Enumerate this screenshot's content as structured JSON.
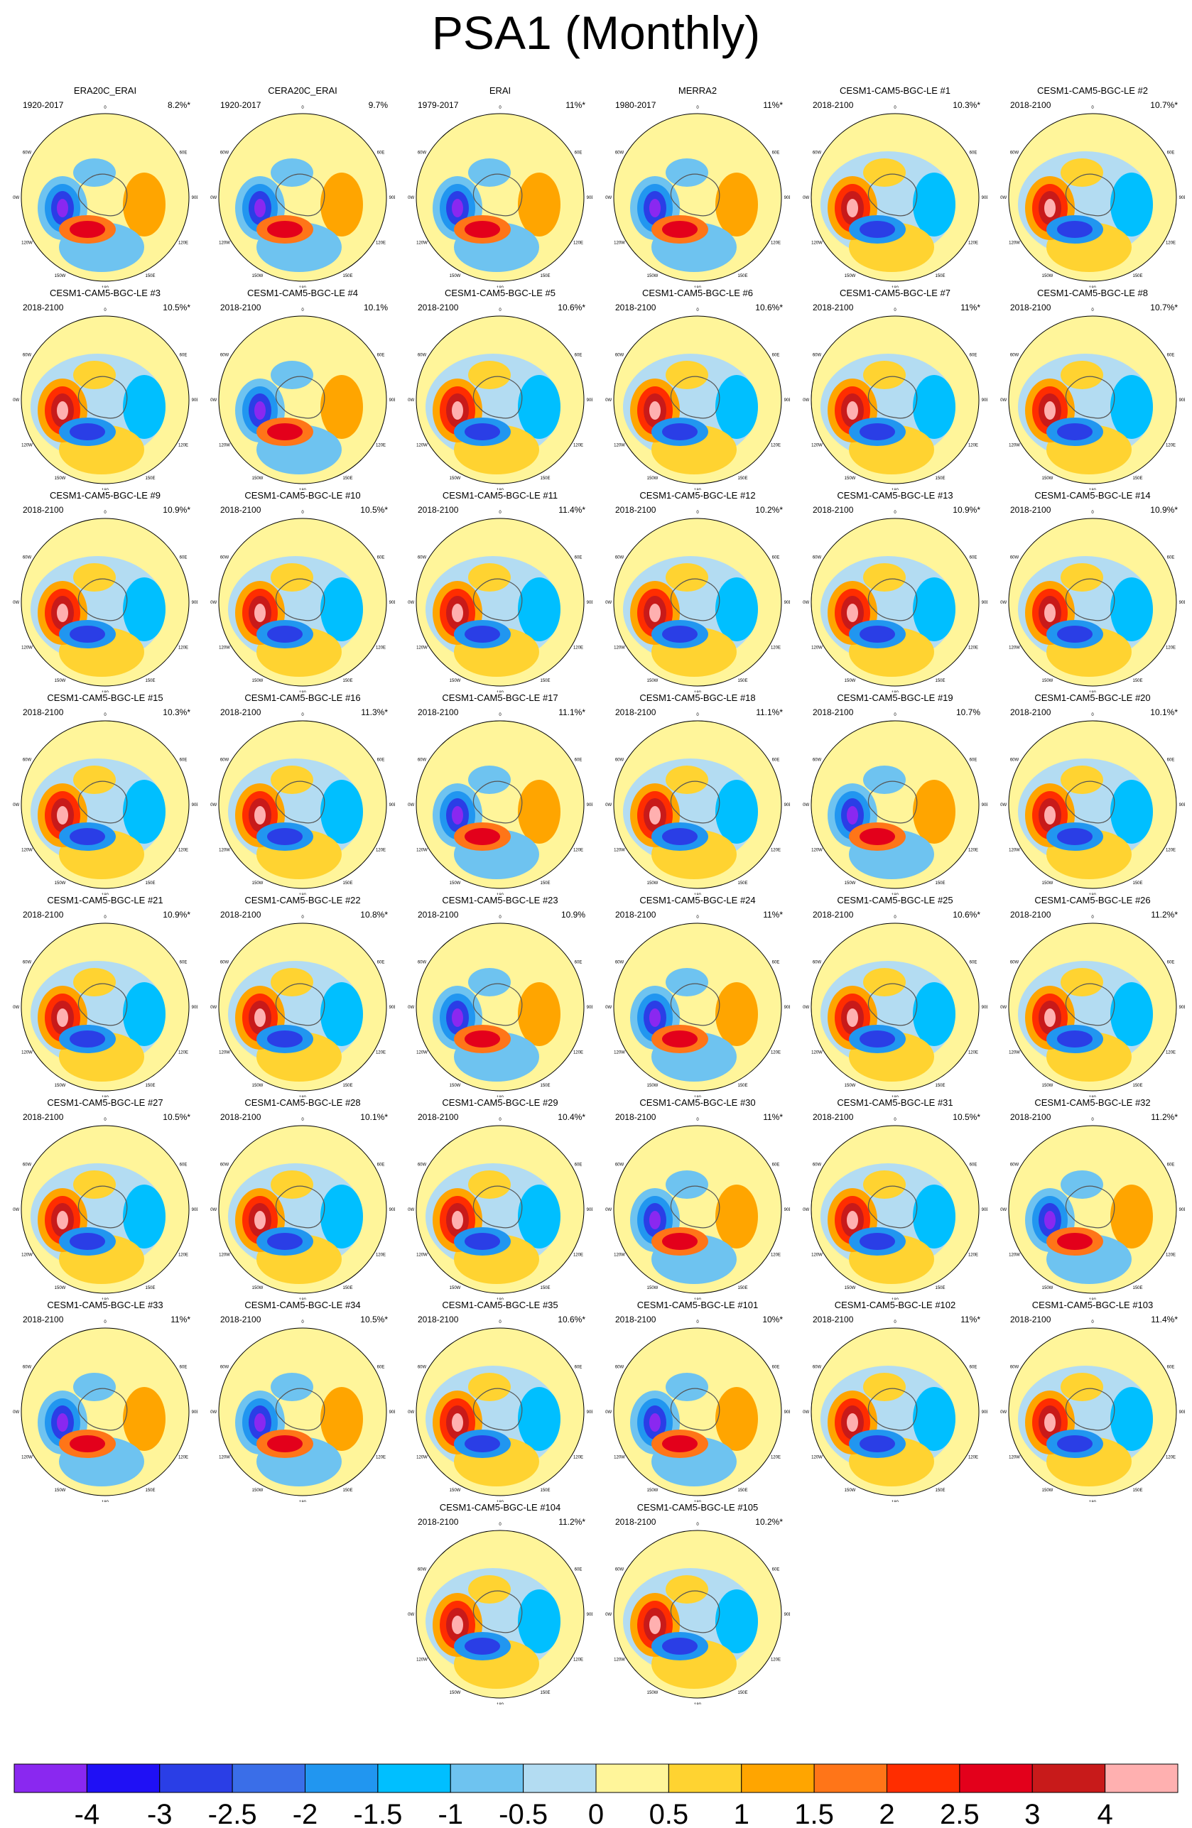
{
  "title": "PSA1 (Monthly)",
  "chart_data": {
    "type": "polar-contour-map-grid",
    "title": "PSA1 (Monthly)",
    "projection": "south-polar stereographic",
    "longitude_labels": [
      "0",
      "30E",
      "60E",
      "90E",
      "120E",
      "150E",
      "180",
      "150W",
      "120W",
      "90W",
      "60W",
      "30W"
    ],
    "panels": [
      {
        "name": "ERA20C_ERAI",
        "period": "1920-2017",
        "pct": "8.2%*"
      },
      {
        "name": "CERA20C_ERAI",
        "period": "1920-2017",
        "pct": "9.7%"
      },
      {
        "name": "ERAI",
        "period": "1979-2017",
        "pct": "11%*"
      },
      {
        "name": "MERRA2",
        "period": "1980-2017",
        "pct": "11%*"
      },
      {
        "name": "CESM1-CAM5-BGC-LE #1",
        "period": "2018-2100",
        "pct": "10.3%*"
      },
      {
        "name": "CESM1-CAM5-BGC-LE #2",
        "period": "2018-2100",
        "pct": "10.7%*"
      },
      {
        "name": "CESM1-CAM5-BGC-LE #3",
        "period": "2018-2100",
        "pct": "10.5%*"
      },
      {
        "name": "CESM1-CAM5-BGC-LE #4",
        "period": "2018-2100",
        "pct": "10.1%"
      },
      {
        "name": "CESM1-CAM5-BGC-LE #5",
        "period": "2018-2100",
        "pct": "10.6%*"
      },
      {
        "name": "CESM1-CAM5-BGC-LE #6",
        "period": "2018-2100",
        "pct": "10.6%*"
      },
      {
        "name": "CESM1-CAM5-BGC-LE #7",
        "period": "2018-2100",
        "pct": "11%*"
      },
      {
        "name": "CESM1-CAM5-BGC-LE #8",
        "period": "2018-2100",
        "pct": "10.7%*"
      },
      {
        "name": "CESM1-CAM5-BGC-LE #9",
        "period": "2018-2100",
        "pct": "10.9%*"
      },
      {
        "name": "CESM1-CAM5-BGC-LE #10",
        "period": "2018-2100",
        "pct": "10.5%*"
      },
      {
        "name": "CESM1-CAM5-BGC-LE #11",
        "period": "2018-2100",
        "pct": "11.4%*"
      },
      {
        "name": "CESM1-CAM5-BGC-LE #12",
        "period": "2018-2100",
        "pct": "10.2%*"
      },
      {
        "name": "CESM1-CAM5-BGC-LE #13",
        "period": "2018-2100",
        "pct": "10.9%*"
      },
      {
        "name": "CESM1-CAM5-BGC-LE #14",
        "period": "2018-2100",
        "pct": "10.9%*"
      },
      {
        "name": "CESM1-CAM5-BGC-LE #15",
        "period": "2018-2100",
        "pct": "10.3%*"
      },
      {
        "name": "CESM1-CAM5-BGC-LE #16",
        "period": "2018-2100",
        "pct": "11.3%*"
      },
      {
        "name": "CESM1-CAM5-BGC-LE #17",
        "period": "2018-2100",
        "pct": "11.1%*"
      },
      {
        "name": "CESM1-CAM5-BGC-LE #18",
        "period": "2018-2100",
        "pct": "11.1%*"
      },
      {
        "name": "CESM1-CAM5-BGC-LE #19",
        "period": "2018-2100",
        "pct": "10.7%"
      },
      {
        "name": "CESM1-CAM5-BGC-LE #20",
        "period": "2018-2100",
        "pct": "10.1%*"
      },
      {
        "name": "CESM1-CAM5-BGC-LE #21",
        "period": "2018-2100",
        "pct": "10.9%*"
      },
      {
        "name": "CESM1-CAM5-BGC-LE #22",
        "period": "2018-2100",
        "pct": "10.8%*"
      },
      {
        "name": "CESM1-CAM5-BGC-LE #23",
        "period": "2018-2100",
        "pct": "10.9%"
      },
      {
        "name": "CESM1-CAM5-BGC-LE #24",
        "period": "2018-2100",
        "pct": "11%*"
      },
      {
        "name": "CESM1-CAM5-BGC-LE #25",
        "period": "2018-2100",
        "pct": "10.6%*"
      },
      {
        "name": "CESM1-CAM5-BGC-LE #26",
        "period": "2018-2100",
        "pct": "11.2%*"
      },
      {
        "name": "CESM1-CAM5-BGC-LE #27",
        "period": "2018-2100",
        "pct": "10.5%*"
      },
      {
        "name": "CESM1-CAM5-BGC-LE #28",
        "period": "2018-2100",
        "pct": "10.1%*"
      },
      {
        "name": "CESM1-CAM5-BGC-LE #29",
        "period": "2018-2100",
        "pct": "10.4%*"
      },
      {
        "name": "CESM1-CAM5-BGC-LE #30",
        "period": "2018-2100",
        "pct": "11%*"
      },
      {
        "name": "CESM1-CAM5-BGC-LE #31",
        "period": "2018-2100",
        "pct": "10.5%*"
      },
      {
        "name": "CESM1-CAM5-BGC-LE #32",
        "period": "2018-2100",
        "pct": "11.2%*"
      },
      {
        "name": "CESM1-CAM5-BGC-LE #33",
        "period": "2018-2100",
        "pct": "11%*"
      },
      {
        "name": "CESM1-CAM5-BGC-LE #34",
        "period": "2018-2100",
        "pct": "10.5%*"
      },
      {
        "name": "CESM1-CAM5-BGC-LE #35",
        "period": "2018-2100",
        "pct": "10.6%*"
      },
      {
        "name": "CESM1-CAM5-BGC-LE #101",
        "period": "2018-2100",
        "pct": "10%*"
      },
      {
        "name": "CESM1-CAM5-BGC-LE #102",
        "period": "2018-2100",
        "pct": "11%*"
      },
      {
        "name": "CESM1-CAM5-BGC-LE #103",
        "period": "2018-2100",
        "pct": "11.4%*"
      },
      {
        "name": "CESM1-CAM5-BGC-LE #104",
        "period": "2018-2100",
        "pct": "11.2%*"
      },
      {
        "name": "CESM1-CAM5-BGC-LE #105",
        "period": "2018-2100",
        "pct": "10.2%*"
      }
    ],
    "colorbar": {
      "labels": [
        "-4",
        "-3",
        "-2.5",
        "-2",
        "-1.5",
        "-1",
        "-0.5",
        "0",
        "0.5",
        "1",
        "1.5",
        "2",
        "2.5",
        "3",
        "4"
      ],
      "colors": [
        "#8a28f0",
        "#1f10f5",
        "#2a3ee6",
        "#3a6ee8",
        "#2196f0",
        "#00bfff",
        "#6ec3f0",
        "#b3dcf2",
        "#fff59a",
        "#ffd331",
        "#ffa500",
        "#ff7518",
        "#ff2d00",
        "#e3001b",
        "#c81a1a",
        "#ffb0b0"
      ]
    }
  }
}
